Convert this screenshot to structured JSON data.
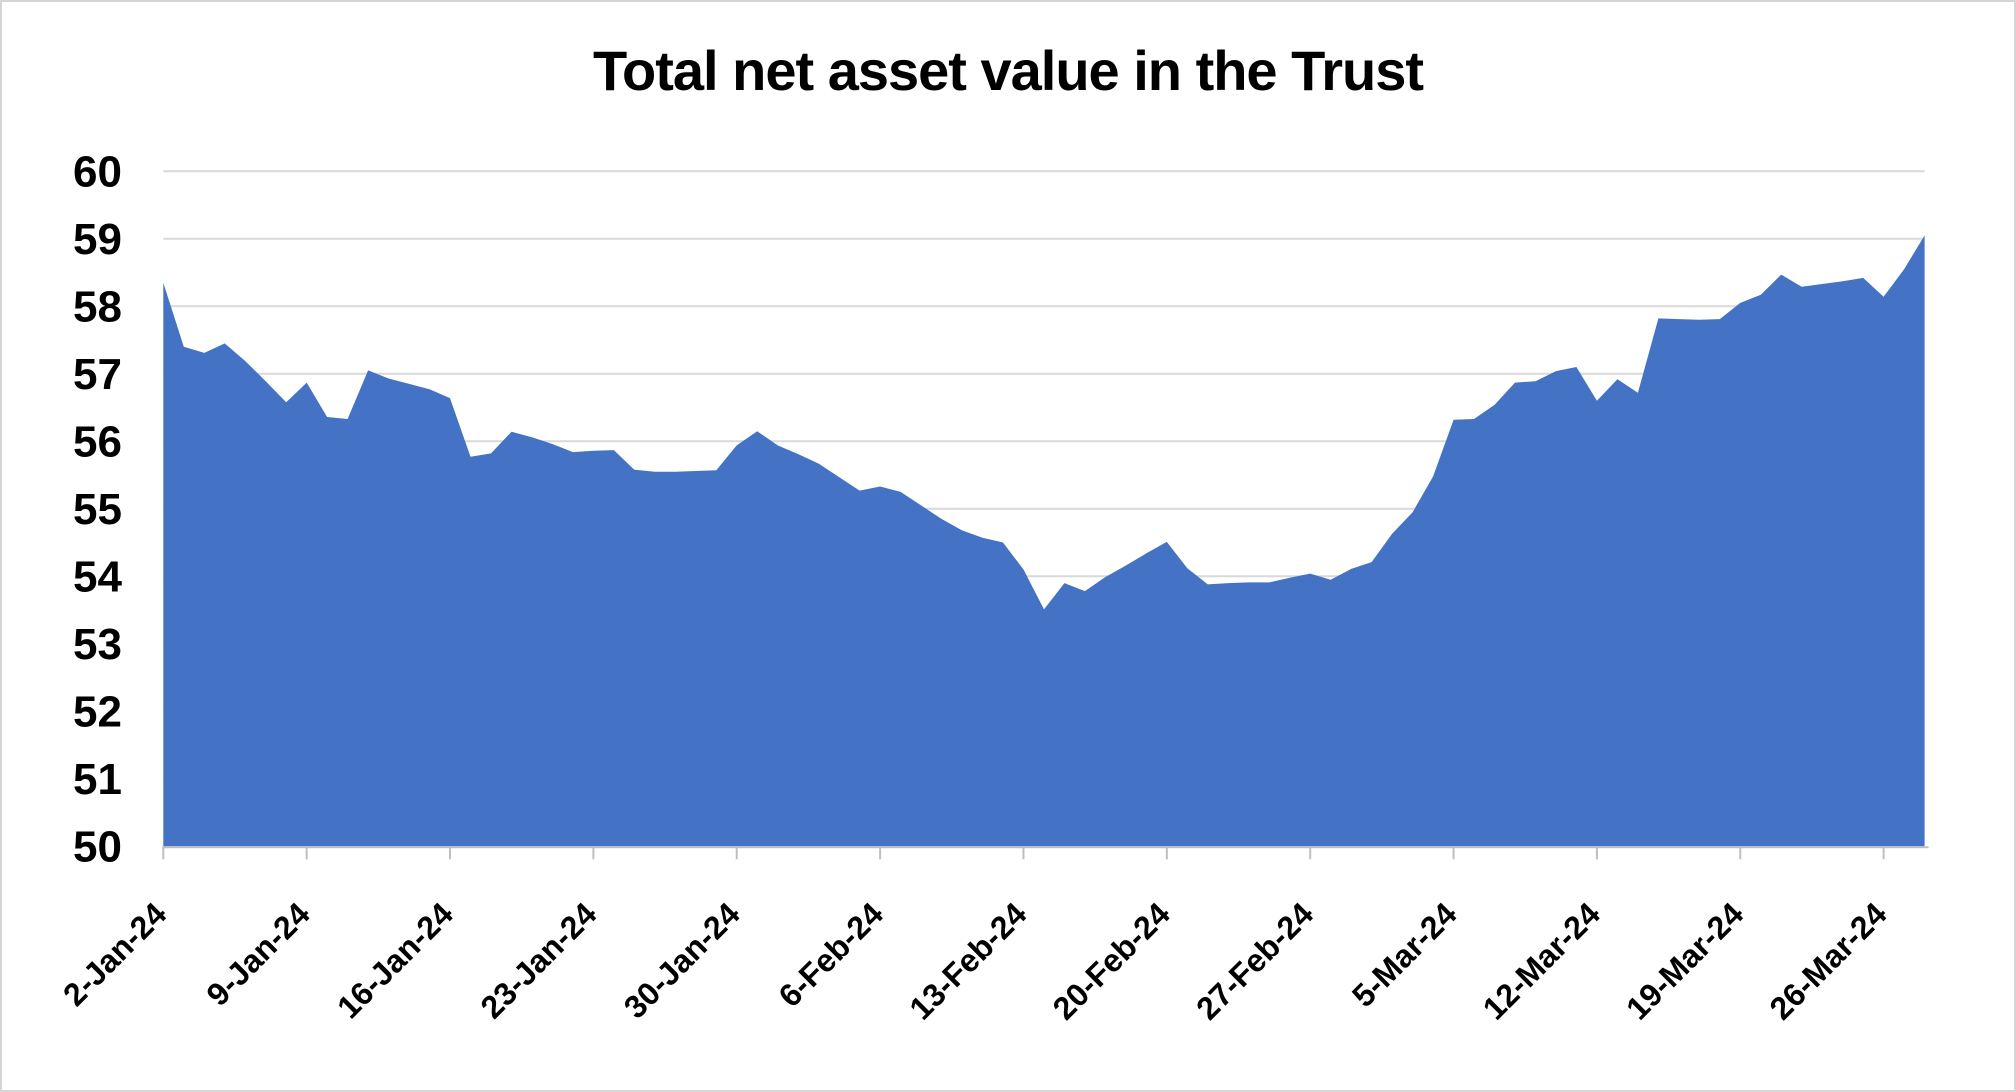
{
  "chart_data": {
    "type": "area",
    "title": "Total net asset value in the Trust",
    "xlabel": "",
    "ylabel": "",
    "ylim": [
      50,
      60
    ],
    "ytick_step": 1,
    "y_tick_labels": [
      "50",
      "51",
      "52",
      "53",
      "54",
      "55",
      "56",
      "57",
      "58",
      "59",
      "60"
    ],
    "x_tick_labels": [
      "2-Jan-24",
      "9-Jan-24",
      "16-Jan-24",
      "23-Jan-24",
      "30-Jan-24",
      "6-Feb-24",
      "13-Feb-24",
      "20-Feb-24",
      "27-Feb-24",
      "5-Mar-24",
      "12-Mar-24",
      "19-Mar-24",
      "26-Mar-24"
    ],
    "x_tick_every_n_points": 7,
    "grid": "horizontal-only",
    "legend_position": "none",
    "values": [
      58.35,
      57.4,
      57.31,
      57.45,
      57.19,
      56.89,
      56.58,
      56.87,
      56.36,
      56.33,
      57.05,
      56.93,
      56.85,
      56.77,
      56.64,
      55.77,
      55.82,
      56.14,
      56.06,
      55.96,
      55.84,
      55.86,
      55.87,
      55.58,
      55.55,
      55.55,
      55.56,
      55.57,
      55.94,
      56.15,
      55.94,
      55.81,
      55.67,
      55.47,
      55.27,
      55.33,
      55.25,
      55.05,
      54.85,
      54.68,
      54.57,
      54.5,
      54.1,
      53.51,
      53.9,
      53.78,
      53.99,
      54.16,
      54.34,
      54.51,
      54.12,
      53.88,
      53.9,
      53.91,
      53.91,
      53.98,
      54.04,
      53.95,
      54.11,
      54.21,
      54.63,
      54.95,
      55.48,
      56.32,
      56.33,
      56.54,
      56.87,
      56.89,
      57.04,
      57.1,
      56.6,
      56.92,
      56.72,
      57.82,
      57.81,
      57.8,
      57.81,
      58.05,
      58.17,
      58.47,
      58.29,
      58.33,
      58.37,
      58.42,
      58.14,
      58.55,
      59.05
    ],
    "colors": {
      "area_fill": "#4472C4",
      "gridline": "#D9D9D9",
      "axis_line": "#BFBFBF",
      "text": "#000000",
      "background": "#FFFFFF",
      "canvas_border": "#D5D5D5"
    }
  }
}
